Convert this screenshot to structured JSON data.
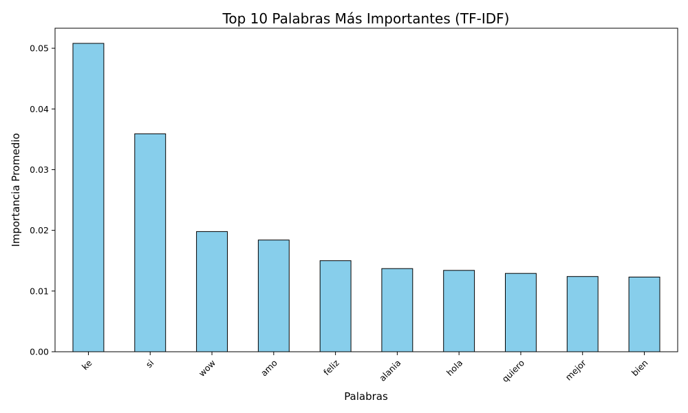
{
  "chart_data": {
    "type": "bar",
    "title": "Top 10 Palabras Más Importantes (TF-IDF)",
    "xlabel": "Palabras",
    "ylabel": "Importancia Promedio",
    "categories": [
      "ke",
      "si",
      "wow",
      "amo",
      "feliz",
      "alania",
      "hola",
      "quiero",
      "mejor",
      "bien"
    ],
    "values": [
      0.0508,
      0.0359,
      0.0198,
      0.0184,
      0.015,
      0.0137,
      0.0134,
      0.0129,
      0.0124,
      0.0123
    ],
    "ylim": [
      0,
      0.0533
    ],
    "yticks": [
      "0.00",
      "0.01",
      "0.02",
      "0.03",
      "0.04",
      "0.05"
    ],
    "bar_color": "#87ceeb",
    "edge_color": "#000000",
    "grid": false,
    "legend": "none"
  }
}
